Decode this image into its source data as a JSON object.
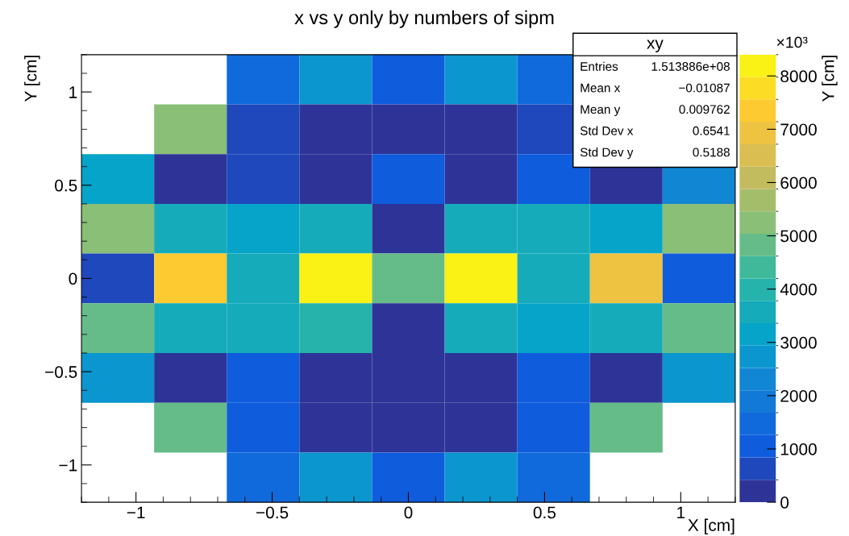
{
  "chart_data": {
    "type": "heatmap",
    "title": "x vs y only by numbers of sipm",
    "xlabel": "X [cm]",
    "ylabel": "Y [cm]",
    "clabel": "Y [cm]",
    "x": [
      -1.0667,
      -0.8,
      -0.5333,
      -0.2667,
      0,
      0.2667,
      0.5333,
      0.8,
      1.0667
    ],
    "y": [
      1.0667,
      0.8,
      0.5333,
      0.2667,
      0,
      -0.2667,
      -0.5333,
      -0.8,
      -1.0667
    ],
    "xlim": [
      -1.2,
      1.2
    ],
    "ylim": [
      -1.2,
      1.2
    ],
    "xticks": [
      {
        "value": -1,
        "label": "−1"
      },
      {
        "value": -0.5,
        "label": "−0.5"
      },
      0,
      0.5,
      1
    ],
    "yticks": [
      {
        "value": -1,
        "label": "−1"
      },
      {
        "value": -0.5,
        "label": "−0.5"
      },
      0,
      0.5,
      1
    ],
    "cells": [
      [
        null,
        null,
        1500,
        2700,
        1000,
        2700,
        1500,
        null,
        null
      ],
      [
        null,
        5200,
        700,
        200,
        200,
        200,
        700,
        null,
        null
      ],
      [
        3100,
        200,
        700,
        200,
        1200,
        200,
        1100,
        200,
        2500
      ],
      [
        5200,
        3500,
        3100,
        3500,
        200,
        3500,
        3500,
        3100,
        5200
      ],
      [
        700,
        7300,
        3500,
        8200,
        4800,
        8200,
        3500,
        6900,
        1100
      ],
      [
        4800,
        3500,
        3500,
        4000,
        200,
        3500,
        3100,
        3500,
        4800
      ],
      [
        2700,
        200,
        1100,
        200,
        200,
        200,
        1100,
        200,
        2700
      ],
      [
        null,
        4800,
        1100,
        200,
        200,
        200,
        1100,
        4800,
        null
      ],
      [
        null,
        null,
        1500,
        2700,
        1000,
        2700,
        1500,
        null,
        null
      ]
    ],
    "clim": [
      0,
      8400
    ],
    "cticks": [
      0,
      1000,
      2000,
      3000,
      4000,
      5000,
      6000,
      7000,
      8000
    ],
    "grid": false,
    "annotations": [
      "×10³",
      "xy",
      "Entries 1.513886e+08",
      "Mean x −0.01087",
      "Mean y 0.009762",
      "Std Dev x 0.6541",
      "Std Dev y 0.5188"
    ]
  }
}
